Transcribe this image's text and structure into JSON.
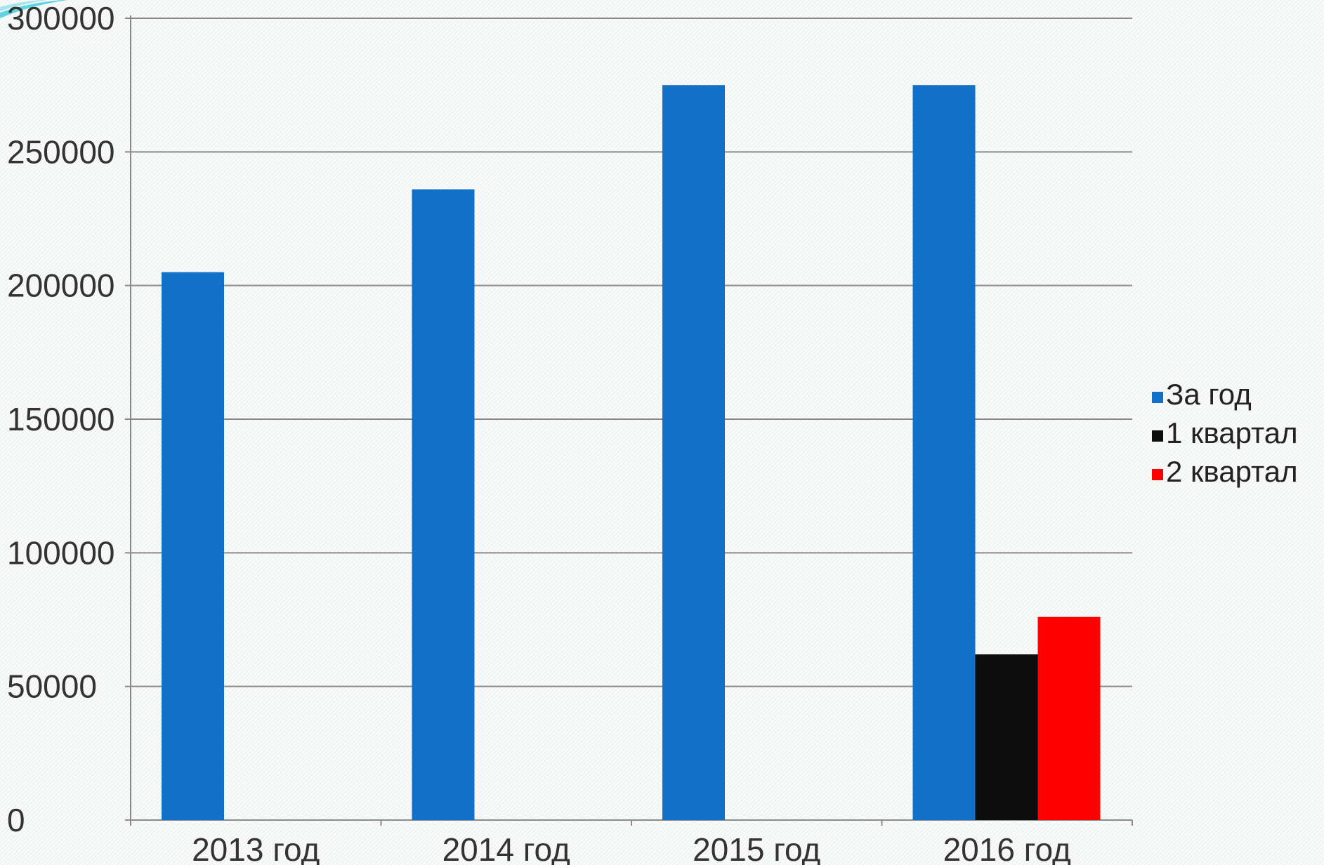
{
  "chart_data": {
    "type": "bar",
    "title": "",
    "xlabel": "",
    "ylabel": "",
    "categories": [
      "2013 год",
      "2014 год",
      "2015 год",
      "2016 год"
    ],
    "series": [
      {
        "name": "За год",
        "color": "#1170c8",
        "values": [
          205000,
          236000,
          275000,
          275000
        ]
      },
      {
        "name": "1 квартал",
        "color": "#0d0d0d",
        "values": [
          null,
          null,
          null,
          62000
        ]
      },
      {
        "name": "2 квартал",
        "color": "#ff0000",
        "values": [
          null,
          null,
          null,
          76000
        ]
      }
    ],
    "ylim": [
      0,
      300000
    ],
    "yticks": [
      0,
      50000,
      100000,
      150000,
      200000,
      250000,
      300000
    ],
    "ytick_labels": [
      "0",
      "50000",
      "100000",
      "150000",
      "200000",
      "250000",
      "300000"
    ],
    "grid": true,
    "legend_position": "right"
  }
}
